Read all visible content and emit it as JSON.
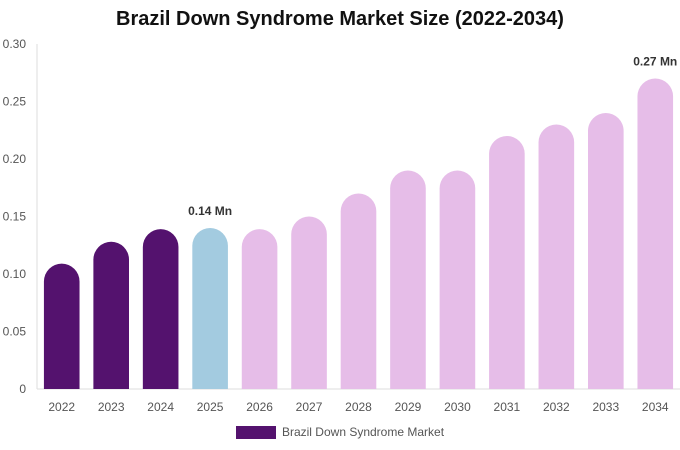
{
  "title": "Brazil Down Syndrome Market Size (2022-2034)",
  "legend": {
    "label": "Brazil Down Syndrome Market",
    "color": "#54126e"
  },
  "chart_data": {
    "type": "bar",
    "title": "Brazil Down Syndrome Market Size (2022-2034)",
    "categories": [
      "2022",
      "2023",
      "2024",
      "2025",
      "2026",
      "2027",
      "2028",
      "2029",
      "2030",
      "2031",
      "2032",
      "2033",
      "2034"
    ],
    "series": [
      {
        "name": "Brazil Down Syndrome Market",
        "values": [
          0.109,
          0.128,
          0.139,
          0.14,
          0.139,
          0.15,
          0.17,
          0.19,
          0.19,
          0.22,
          0.23,
          0.24,
          0.27
        ]
      }
    ],
    "bar_colors": [
      "#54126e",
      "#54126e",
      "#54126e",
      "#a3cbe0",
      "#e6bde8",
      "#e6bde8",
      "#e6bde8",
      "#e6bde8",
      "#e6bde8",
      "#e6bde8",
      "#e6bde8",
      "#e6bde8",
      "#e6bde8"
    ],
    "ylim": [
      0,
      0.3
    ],
    "yticks": [
      "0",
      "0.05",
      "0.10",
      "0.15",
      "0.20",
      "0.25",
      "0.30"
    ],
    "grid": false,
    "legend_position": "bottom",
    "annotations": [
      {
        "category": "2025",
        "text": "0.14 Mn"
      },
      {
        "category": "2034",
        "text": "0.27 Mn"
      }
    ]
  }
}
